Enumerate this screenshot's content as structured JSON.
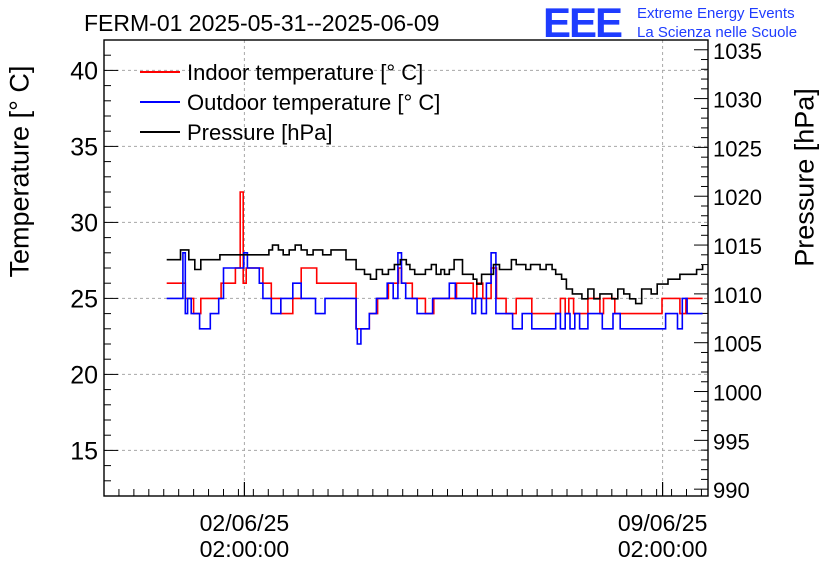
{
  "header": {
    "title": "FERM-01 2025-05-31--2025-06-09",
    "logo_text": "EEE",
    "logo_line1": "Extreme Energy Events",
    "logo_line2": "La Scienza nelle Scuole"
  },
  "colors": {
    "indoor": "#ff0000",
    "outdoor": "#0000ff",
    "pressure": "#000000",
    "logo": "#1e3cff"
  },
  "chart_data": {
    "type": "line",
    "title": "FERM-01 2025-05-31--2025-06-09",
    "ylabel": "Temperature [° C]",
    "y2label": "Pressure [hPa]",
    "ylim": [
      12,
      42
    ],
    "y2lim": [
      989.3,
      1036.0
    ],
    "yticks": [
      "15",
      "20",
      "25",
      "30",
      "35",
      "40"
    ],
    "y2ticks": [
      "990",
      "995",
      "1000",
      "1005",
      "1010",
      "1015",
      "1020",
      "1025",
      "1030",
      "1035"
    ],
    "xlim": [
      0,
      10.11
    ],
    "xtick_labels": [
      {
        "x": 2.35,
        "line1": "02/06/25",
        "line2": "02:00:00"
      },
      {
        "x": 9.35,
        "line1": "09/06/25",
        "line2": "02:00:00"
      }
    ],
    "grid": true,
    "legend_position": "top-left",
    "series": [
      {
        "name": "Indoor temperature [° C]",
        "axis": "left",
        "x": [
          1.05,
          1.32,
          1.36,
          1.42,
          1.5,
          1.56,
          1.62,
          1.78,
          1.96,
          2.02,
          2.2,
          2.28,
          2.33,
          2.38,
          2.44,
          2.56,
          2.66,
          2.72,
          2.8,
          2.9,
          2.96,
          3.1,
          3.16,
          3.24,
          3.3,
          3.46,
          3.56,
          3.64,
          3.7,
          4.22,
          4.44,
          4.58,
          4.76,
          4.86,
          4.93,
          4.98,
          5.05,
          5.16,
          5.26,
          5.38,
          5.52,
          5.7,
          5.8,
          5.9,
          6.03,
          6.18,
          6.24,
          6.34,
          6.42,
          6.48,
          6.57,
          6.73,
          6.9,
          7.16,
          7.38,
          7.58,
          7.64,
          7.72,
          7.78,
          7.86,
          7.94,
          8.1,
          8.3,
          8.36,
          8.55,
          8.68,
          8.86,
          9.06,
          9.26,
          9.34,
          9.38,
          9.52,
          9.64,
          9.74,
          9.78,
          9.86,
          10.02
        ],
        "values": [
          26,
          26,
          25,
          25,
          24,
          24,
          25,
          25,
          26,
          26,
          27,
          32,
          26,
          27,
          27,
          27,
          26,
          26,
          25,
          25,
          24,
          24,
          25,
          25,
          27,
          27,
          26,
          26,
          26,
          23,
          24,
          25,
          26,
          26,
          27,
          26,
          26,
          25,
          25,
          24,
          25,
          25,
          25,
          26,
          26,
          25,
          26,
          25,
          25,
          27,
          25,
          24,
          25,
          24,
          24,
          24,
          25,
          24,
          25,
          24,
          24,
          25,
          24,
          25,
          24,
          24,
          24,
          24,
          24,
          25,
          25,
          25,
          24,
          25,
          25,
          25,
          25
        ]
      },
      {
        "name": "Outdoor temperature [° C]",
        "axis": "left",
        "x": [
          1.05,
          1.28,
          1.32,
          1.36,
          1.4,
          1.46,
          1.55,
          1.6,
          1.66,
          1.78,
          1.92,
          2.0,
          2.15,
          2.3,
          2.34,
          2.4,
          2.54,
          2.6,
          2.66,
          2.72,
          2.8,
          2.9,
          2.96,
          3.1,
          3.16,
          3.24,
          3.3,
          3.46,
          3.54,
          3.62,
          3.7,
          4.22,
          4.24,
          4.3,
          4.44,
          4.56,
          4.74,
          4.84,
          4.92,
          4.98,
          5.05,
          5.16,
          5.24,
          5.36,
          5.5,
          5.66,
          5.78,
          5.88,
          6.0,
          6.16,
          6.22,
          6.32,
          6.4,
          6.48,
          6.56,
          6.66,
          6.84,
          7.0,
          7.16,
          7.36,
          7.56,
          7.64,
          7.72,
          7.8,
          7.88,
          7.96,
          8.1,
          8.28,
          8.34,
          8.52,
          8.64,
          8.84,
          9.04,
          9.24,
          9.34,
          9.4,
          9.5,
          9.6,
          9.68,
          9.76,
          9.84,
          10.02
        ],
        "values": [
          25,
          25,
          28,
          24,
          25,
          24,
          24,
          23,
          23,
          24,
          25,
          27,
          27,
          27,
          28,
          27,
          27,
          26,
          25,
          25,
          24,
          24,
          25,
          25,
          26,
          26,
          25,
          25,
          24,
          24,
          25,
          23,
          22,
          23,
          24,
          25,
          26,
          25,
          28,
          26,
          25,
          25,
          24,
          24,
          25,
          25,
          26,
          25,
          25,
          24,
          25,
          24,
          26,
          28,
          24,
          24,
          23,
          24,
          23,
          23,
          24,
          23,
          24,
          23,
          24,
          23,
          24,
          24,
          23,
          24,
          23,
          23,
          23,
          23,
          23,
          24,
          24,
          23,
          25,
          24,
          24,
          24
        ]
      },
      {
        "name": "Pressure [hPa]",
        "axis": "right",
        "x": [
          1.05,
          1.2,
          1.28,
          1.36,
          1.42,
          1.52,
          1.62,
          1.78,
          1.94,
          2.1,
          2.2,
          2.3,
          2.4,
          2.46,
          2.56,
          2.66,
          2.76,
          2.82,
          2.92,
          3.0,
          3.1,
          3.2,
          3.3,
          3.4,
          3.5,
          3.6,
          3.66,
          3.8,
          4.05,
          4.22,
          4.36,
          4.46,
          4.56,
          4.66,
          4.76,
          4.86,
          4.96,
          5.06,
          5.12,
          5.2,
          5.3,
          5.38,
          5.48,
          5.56,
          5.64,
          5.7,
          5.78,
          5.86,
          6.0,
          6.1,
          6.18,
          6.24,
          6.32,
          6.42,
          6.52,
          6.62,
          6.72,
          6.82,
          6.9,
          6.98,
          7.06,
          7.14,
          7.22,
          7.3,
          7.4,
          7.5,
          7.56,
          7.66,
          7.74,
          7.84,
          7.92,
          8.0,
          8.1,
          8.2,
          8.3,
          8.4,
          8.5,
          8.6,
          8.7,
          8.8,
          8.9,
          9.0,
          9.08,
          9.16,
          9.26,
          9.34,
          9.44,
          9.54,
          9.64,
          9.74,
          9.84,
          9.92,
          10.02
        ],
        "values": [
          1013.5,
          1013.5,
          1014.5,
          1014.5,
          1013.5,
          1012.5,
          1013.5,
          1013.5,
          1014.0,
          1014.0,
          1014.0,
          1014.0,
          1014.0,
          1014.0,
          1014.0,
          1014.0,
          1014.5,
          1015.0,
          1014.5,
          1014.0,
          1014.5,
          1015.0,
          1014.5,
          1014.0,
          1014.5,
          1014.5,
          1014.0,
          1014.5,
          1013.5,
          1012.5,
          1012.0,
          1011.5,
          1012.5,
          1012.0,
          1012.5,
          1013.0,
          1013.5,
          1013.0,
          1012.5,
          1012.0,
          1012.0,
          1012.5,
          1013.0,
          1012.0,
          1012.5,
          1012.0,
          1012.5,
          1013.5,
          1012.0,
          1012.0,
          1011.5,
          1011.0,
          1012.0,
          1012.0,
          1013.0,
          1012.5,
          1012.5,
          1013.5,
          1013.0,
          1013.0,
          1012.5,
          1013.0,
          1013.0,
          1012.5,
          1013.0,
          1012.5,
          1012.0,
          1011.5,
          1010.5,
          1010.0,
          1010.0,
          1009.5,
          1010.5,
          1009.5,
          1010.0,
          1010.0,
          1009.5,
          1010.5,
          1010.0,
          1009.5,
          1009.0,
          1010.5,
          1010.5,
          1010.0,
          1011.0,
          1011.0,
          1011.5,
          1011.5,
          1012.0,
          1012.0,
          1012.0,
          1012.5,
          1013.0
        ]
      }
    ]
  }
}
